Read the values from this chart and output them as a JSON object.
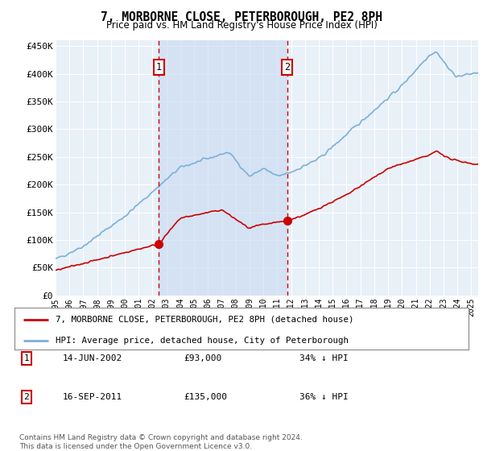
{
  "title": "7, MORBORNE CLOSE, PETERBOROUGH, PE2 8PH",
  "subtitle": "Price paid vs. HM Land Registry's House Price Index (HPI)",
  "background_color": "#ffffff",
  "plot_bg_color": "#e8f0f8",
  "shade_color": "#c8daf0",
  "ylim": [
    0,
    460000
  ],
  "yticks": [
    0,
    50000,
    100000,
    150000,
    200000,
    250000,
    300000,
    350000,
    400000,
    450000
  ],
  "xlim_start": 1995.0,
  "xlim_end": 2025.5,
  "transaction1": {
    "year": 2002.45,
    "price": 93000,
    "label": "1",
    "date": "14-JUN-2002",
    "pct": "34% ↓ HPI"
  },
  "transaction2": {
    "year": 2011.71,
    "price": 135000,
    "label": "2",
    "date": "16-SEP-2011",
    "pct": "36% ↓ HPI"
  },
  "red_line_color": "#cc0000",
  "blue_line_color": "#7ab0d8",
  "legend_label_red": "7, MORBORNE CLOSE, PETERBOROUGH, PE2 8PH (detached house)",
  "legend_label_blue": "HPI: Average price, detached house, City of Peterborough",
  "footer": "Contains HM Land Registry data © Crown copyright and database right 2024.\nThis data is licensed under the Open Government Licence v3.0.",
  "table_rows": [
    {
      "num": "1",
      "date": "14-JUN-2002",
      "price": "£93,000",
      "pct": "34% ↓ HPI"
    },
    {
      "num": "2",
      "date": "16-SEP-2011",
      "price": "£135,000",
      "pct": "36% ↓ HPI"
    }
  ]
}
